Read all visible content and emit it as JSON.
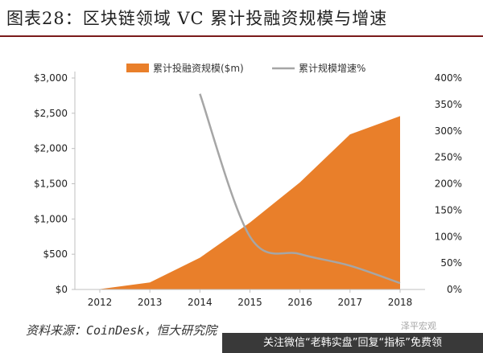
{
  "title": "图表28：区块链领域 VC 累计投融资规模与增速",
  "source": "资料来源：CoinDesk，恒大研究院",
  "overlay_text": "关注微信“老韩实盘”回复“指标”免费领",
  "watermark_text": "泽平宏观",
  "colors": {
    "area": "#e97f2a",
    "line": "#a6a6a6",
    "title_rule": "#7a1a1a",
    "axis": "#bfbfbf"
  },
  "chart_data": {
    "type": "area",
    "title": "",
    "categories": [
      "2012",
      "2013",
      "2014",
      "2015",
      "2016",
      "2017",
      "2018"
    ],
    "series": [
      {
        "name": "累计投融资规模($m)",
        "type": "area",
        "axis": "left",
        "x": [
          2012,
          2013,
          2014,
          2015,
          2016,
          2017,
          2018
        ],
        "values": [
          5,
          100,
          450,
          950,
          1520,
          2200,
          2460
        ]
      },
      {
        "name": "累计规模增速%",
        "type": "line",
        "axis": "right",
        "x": [
          2014,
          2015,
          2016,
          2017,
          2018
        ],
        "values": [
          370,
          100,
          67,
          45,
          12
        ]
      }
    ],
    "y_left": {
      "label": "",
      "min": 0,
      "max": 3000,
      "ticks": [
        "$0",
        "$500",
        "$1,000",
        "$1,500",
        "$2,000",
        "$2,500",
        "$3,000"
      ]
    },
    "y_right": {
      "label": "",
      "min": 0,
      "max": 400,
      "ticks": [
        "0%",
        "50%",
        "100%",
        "150%",
        "200%",
        "250%",
        "300%",
        "350%",
        "400%"
      ]
    },
    "xlabel": "",
    "grid": false,
    "legend_position": "top"
  }
}
